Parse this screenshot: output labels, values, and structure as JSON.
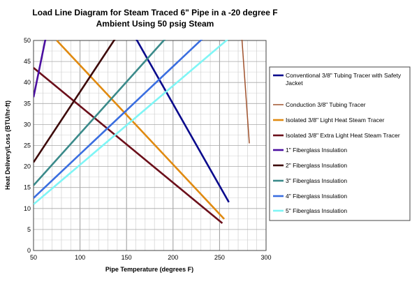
{
  "chart_data": {
    "type": "line",
    "title_line1": "Load Line Diagram  for Steam Traced  6\" Pipe in a -20 degree F",
    "title_line2": "Ambient Using 50 psig Steam",
    "xlabel": "Pipe Temperature (degrees F)",
    "ylabel": "Heat Delivery/Loss (BTU/hr-ft)",
    "xlim": [
      50,
      300
    ],
    "ylim": [
      0,
      50
    ],
    "x_ticks": [
      50,
      100,
      150,
      200,
      250,
      300
    ],
    "y_ticks": [
      0,
      5,
      10,
      15,
      20,
      25,
      30,
      35,
      40,
      45,
      50
    ],
    "grid": true,
    "legend_position": "right",
    "series": [
      {
        "name": "Conventional 3/8\" Tubing Tracer with Safety Jacket",
        "color": "#0a0a8c",
        "x": [
          160,
          260
        ],
        "y": [
          50.5,
          11.5
        ]
      },
      {
        "name": "Conduction 3/8\" Tubing Tracer",
        "color": "#a0522d",
        "x": [
          274,
          282
        ],
        "y": [
          50.5,
          25.5
        ]
      },
      {
        "name": "Isolated 3/8\" Light Heat Steam Tracer",
        "color": "#e08a10",
        "x": [
          75,
          255
        ],
        "y": [
          50,
          7.5
        ]
      },
      {
        "name": "Isolated 3/8\" Extra Light Heat Steam Tracer",
        "color": "#6b0f1a",
        "x": [
          50,
          253
        ],
        "y": [
          43.5,
          6.5
        ]
      },
      {
        "name": "1\" Fiberglass Insulation",
        "color": "#4b0fa0",
        "x": [
          50,
          63
        ],
        "y": [
          36.5,
          50.5
        ]
      },
      {
        "name": "2\" Fiberglass Insulation",
        "color": "#3d0a0a",
        "x": [
          50,
          138
        ],
        "y": [
          21,
          50.5
        ]
      },
      {
        "name": "3\" Fiberglass Insulation",
        "color": "#3a8a8a",
        "x": [
          50,
          192
        ],
        "y": [
          15.5,
          50.5
        ]
      },
      {
        "name": "4\" Fiberglass Insulation",
        "color": "#3a6ee0",
        "x": [
          50,
          232
        ],
        "y": [
          12.5,
          50.5
        ]
      },
      {
        "name": "5\" Fiberglass Insulation",
        "color": "#7ff5f5",
        "x": [
          50,
          260
        ],
        "y": [
          11,
          50.5
        ]
      }
    ]
  }
}
